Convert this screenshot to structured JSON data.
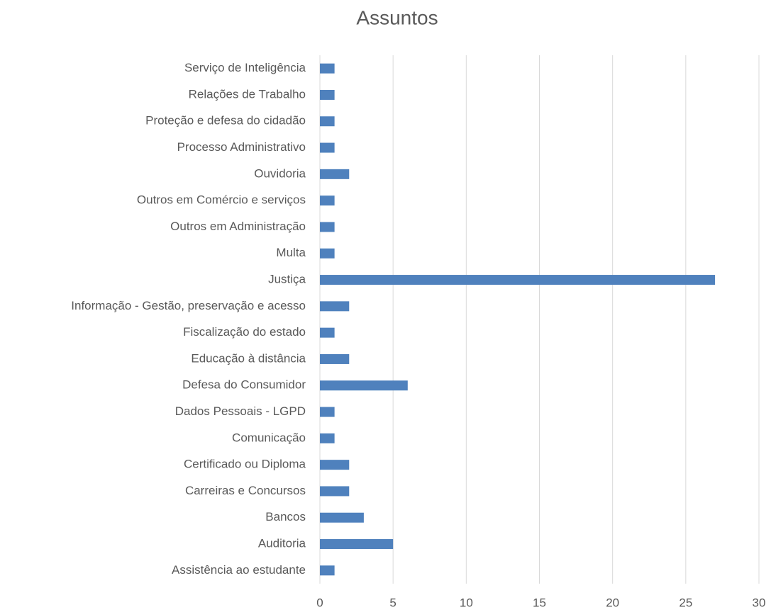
{
  "chart_data": {
    "type": "bar",
    "orientation": "horizontal",
    "title": "Assuntos",
    "categories": [
      "Assistência ao estudante",
      "Auditoria",
      "Bancos",
      "Carreiras e Concursos",
      "Certificado ou Diploma",
      "Comunicação",
      "Dados Pessoais - LGPD",
      "Defesa do Consumidor",
      "Educação à distância",
      "Fiscalização do estado",
      "Informação - Gestão, preservação e acesso",
      "Justiça",
      "Multa",
      "Outros em Administração",
      "Outros em Comércio e serviços",
      "Ouvidoria",
      "Processo Administrativo",
      "Proteção e defesa do cidadão",
      "Relações de Trabalho",
      "Serviço de Inteligência"
    ],
    "values": [
      1,
      5,
      3,
      2,
      2,
      1,
      1,
      6,
      2,
      1,
      2,
      27,
      1,
      1,
      1,
      2,
      1,
      1,
      1,
      1
    ],
    "color": "#4f81bd",
    "xlim": [
      0,
      30
    ],
    "xticks": [
      0,
      5,
      10,
      15,
      20,
      25,
      30
    ],
    "grid": true
  }
}
